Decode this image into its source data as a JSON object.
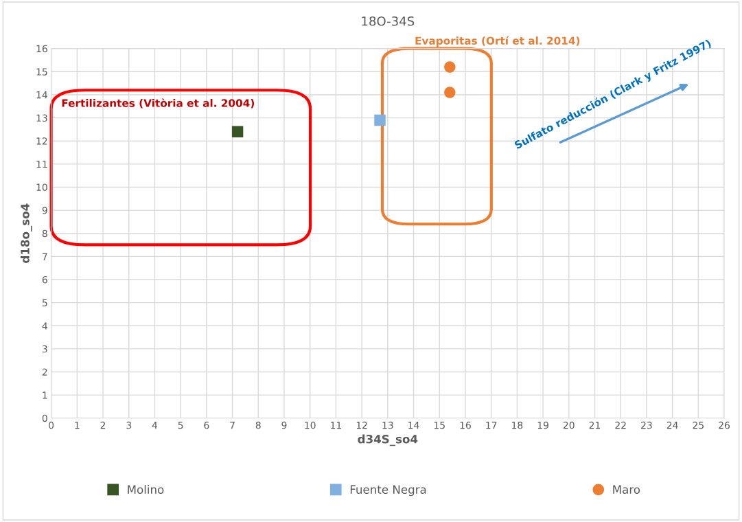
{
  "chart_data": {
    "type": "scatter",
    "title": "18O-34S",
    "xlabel": "d34S_so4",
    "ylabel": "d18o_so4",
    "xlim": [
      0,
      26
    ],
    "ylim": [
      0,
      16
    ],
    "xticks": [
      0,
      1,
      2,
      3,
      4,
      5,
      6,
      7,
      8,
      9,
      10,
      11,
      12,
      13,
      14,
      15,
      16,
      17,
      18,
      19,
      20,
      21,
      22,
      23,
      24,
      25,
      26
    ],
    "yticks": [
      0,
      1,
      2,
      3,
      4,
      5,
      6,
      7,
      8,
      9,
      10,
      11,
      12,
      13,
      14,
      15,
      16
    ],
    "grid": true,
    "legend": "bottom",
    "series": [
      {
        "name": "Molino",
        "color": "#375623",
        "marker": "square",
        "x": [
          7.2
        ],
        "values": [
          12.4
        ]
      },
      {
        "name": "Fuente Negra",
        "color": "#7fb0df",
        "marker": "square",
        "x": [
          12.7
        ],
        "values": [
          12.9
        ]
      },
      {
        "name": "Maro",
        "color": "#ed7d31",
        "marker": "circle",
        "x": [
          15.4,
          15.4
        ],
        "values": [
          15.2,
          14.1
        ]
      }
    ],
    "annotations": [
      "Fertilizantes (Vitòria et al. 2004)",
      "Evaporitas (Ortí et al. 2014)",
      "Sulfato reducción (Clark y Fritz 1997)"
    ]
  }
}
